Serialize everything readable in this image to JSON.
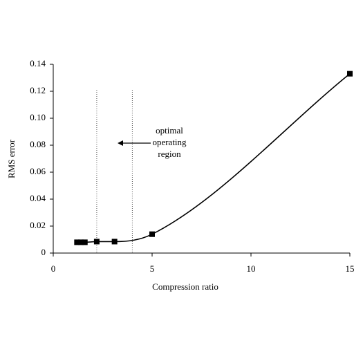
{
  "chart_data": {
    "type": "line",
    "xlabel": "Compression ratio",
    "ylabel": "RMS error",
    "x": [
      1.2,
      1.4,
      1.6,
      2.2,
      3.1,
      5.0,
      15
    ],
    "series": [
      {
        "color": "#000000",
        "values": [
          0.008,
          0.008,
          0.008,
          0.0085,
          0.0085,
          0.014,
          0.133
        ]
      }
    ],
    "xlim": [
      0,
      15
    ],
    "xticks": [
      0,
      5,
      10,
      15
    ],
    "ylim": [
      0,
      0.14
    ],
    "yticks": [
      0,
      0.02,
      0.04,
      0.06,
      0.08,
      {
        "value": 0.1,
        "label": "0.10"
      },
      0.12,
      0.14
    ],
    "vlines": [
      2.2,
      4.0
    ],
    "annotation": [
      "optimal",
      "operating",
      "region"
    ],
    "grid": false
  }
}
